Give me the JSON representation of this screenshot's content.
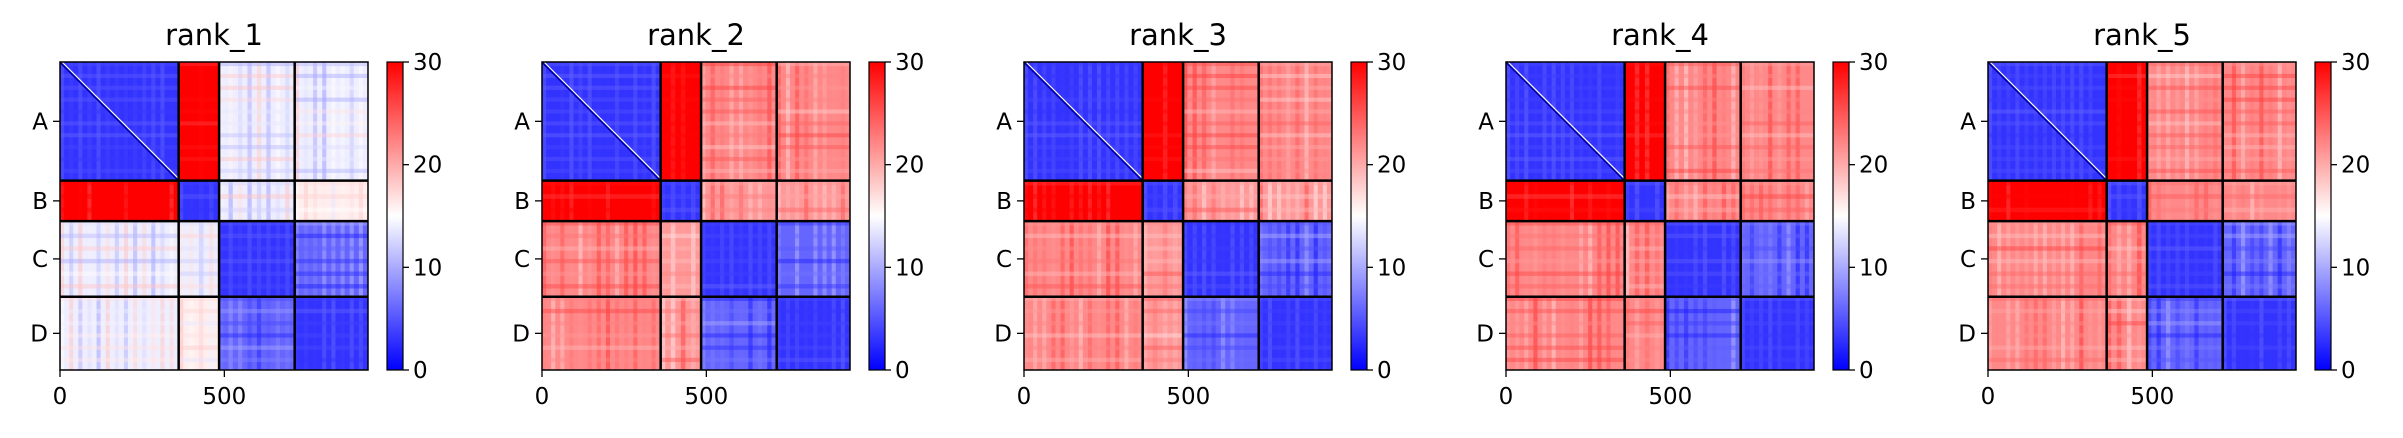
{
  "figure": {
    "colormap": {
      "low": "#0000ff",
      "mid": "#ffffff",
      "high": "#ff0000"
    },
    "colorbar": {
      "min": 0,
      "max": 30,
      "ticks": [
        0,
        10,
        20,
        30
      ]
    },
    "x_ticks": [
      0,
      500
    ],
    "x_max": 937,
    "chain_labels": [
      "A",
      "B",
      "C",
      "D"
    ],
    "chain_boundaries": [
      0,
      361,
      484,
      714,
      937
    ]
  },
  "chart_data": [
    {
      "type": "heatmap",
      "title": "rank_1",
      "xlabel": "",
      "ylabel": "",
      "xlim": [
        0,
        937
      ],
      "value_range": [
        0,
        30
      ],
      "block_mean_values": [
        [
          3,
          30,
          14,
          14
        ],
        [
          30,
          3,
          14,
          16
        ],
        [
          14,
          14,
          3,
          6
        ],
        [
          14,
          16,
          6,
          3
        ]
      ]
    },
    {
      "type": "heatmap",
      "title": "rank_2",
      "xlabel": "",
      "ylabel": "",
      "xlim": [
        0,
        937
      ],
      "value_range": [
        0,
        30
      ],
      "block_mean_values": [
        [
          3,
          30,
          22,
          22
        ],
        [
          30,
          3,
          21,
          21
        ],
        [
          22,
          21,
          3,
          6
        ],
        [
          22,
          21,
          6,
          3
        ]
      ]
    },
    {
      "type": "heatmap",
      "title": "rank_3",
      "xlabel": "",
      "ylabel": "",
      "xlim": [
        0,
        937
      ],
      "value_range": [
        0,
        30
      ],
      "block_mean_values": [
        [
          3,
          30,
          22,
          22
        ],
        [
          30,
          3,
          21,
          21
        ],
        [
          22,
          21,
          3,
          6
        ],
        [
          22,
          21,
          6,
          3
        ]
      ]
    },
    {
      "type": "heatmap",
      "title": "rank_4",
      "xlabel": "",
      "ylabel": "",
      "xlim": [
        0,
        937
      ],
      "value_range": [
        0,
        30
      ],
      "block_mean_values": [
        [
          3,
          30,
          22,
          22
        ],
        [
          30,
          3,
          22,
          22
        ],
        [
          22,
          22,
          3,
          6
        ],
        [
          22,
          22,
          6,
          3
        ]
      ]
    },
    {
      "type": "heatmap",
      "title": "rank_5",
      "xlabel": "",
      "ylabel": "",
      "xlim": [
        0,
        937
      ],
      "value_range": [
        0,
        30
      ],
      "block_mean_values": [
        [
          3,
          30,
          22,
          22
        ],
        [
          30,
          3,
          22,
          22
        ],
        [
          22,
          22,
          3,
          6
        ],
        [
          22,
          22,
          6,
          3
        ]
      ]
    }
  ]
}
